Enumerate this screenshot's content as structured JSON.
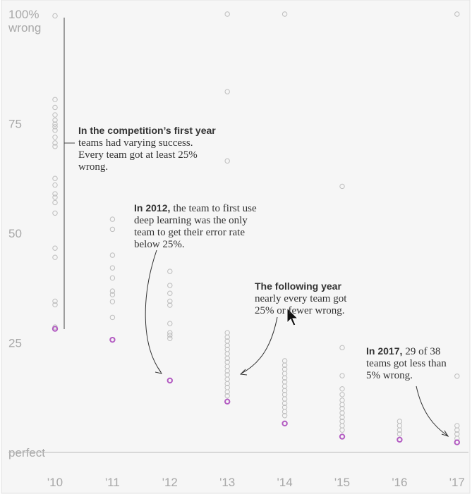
{
  "chart_data": {
    "type": "strip",
    "categories": [
      "'10",
      "'11",
      "'12",
      "'13",
      "'14",
      "'15",
      "'16",
      "'17"
    ],
    "values": [
      [
        99.6,
        80.5,
        78.7,
        77,
        75.8,
        74.9,
        74.3,
        73.5,
        71.9,
        70.6,
        69.8,
        62.5,
        61,
        59,
        58.2,
        57,
        54.6,
        46.6,
        44.5,
        34.5,
        33.7,
        28.6
      ],
      [
        53.2,
        50.9,
        45,
        42.1,
        39.8,
        36.8,
        36,
        34.4,
        30.8
      ],
      [
        41.3,
        38.1,
        36.3,
        34.5,
        33.6,
        29.4,
        27.3,
        26.7,
        26
      ],
      [
        100,
        82.3,
        66.5,
        27.3,
        26.3,
        25.4,
        24.4,
        23.5,
        22.5,
        21.5,
        20.6,
        19.6,
        18.6,
        17.7,
        16.7,
        15.7,
        14.8,
        13.8,
        12.9
      ],
      [
        100,
        20.9,
        19.9,
        19,
        18,
        17,
        16.1,
        15.1,
        14.1,
        13.2,
        12.2,
        11.2,
        10.3,
        9.3,
        8.4
      ],
      [
        60.7,
        23.9,
        17.5,
        14.5,
        13.2,
        11.9,
        10.9,
        10,
        9,
        8,
        7.1,
        6.1,
        5.1
      ],
      [
        7.1,
        6.1,
        5.1,
        4.2
      ],
      [
        100,
        17.4,
        6.1,
        5.1,
        4.2,
        3.2
      ]
    ],
    "highlight_values": [
      28.2,
      25.7,
      16.4,
      11.6,
      6.6,
      3.6,
      2.9,
      2.3
    ],
    "color": "#bdbdbd",
    "highlight_color": "#b35cc2",
    "ylim": [
      0,
      100
    ],
    "yticks": [
      {
        "value": 0,
        "label": "perfect"
      },
      25,
      50,
      75,
      {
        "value": 100,
        "label": "100%"
      }
    ],
    "ylabel": "wrong",
    "annotations": [
      {
        "bold": "In the competition’s first year",
        "lines": [
          "teams had varying success.",
          "Every team got at least 25%",
          "wrong."
        ]
      },
      {
        "bold": "In 2012,",
        "rest": "the team to first use",
        "lines": [
          "deep learning was the only",
          "team to get their error rate",
          "below 25%."
        ]
      },
      {
        "bold": "The following year",
        "lines": [
          "nearly every team got",
          "25% or fewer wrong."
        ]
      },
      {
        "bold": "In 2017,",
        "rest": "29 of 38",
        "lines": [
          "teams got less than",
          "5% wrong."
        ]
      }
    ]
  }
}
